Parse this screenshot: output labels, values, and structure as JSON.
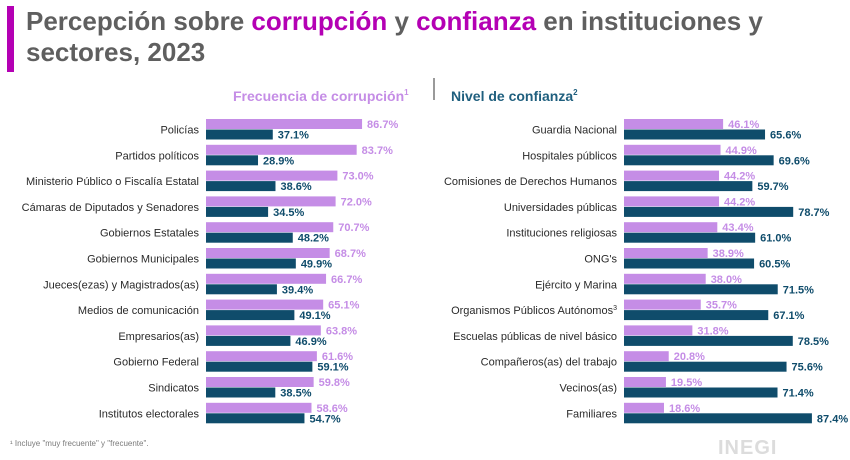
{
  "title": {
    "part1": "Percepción sobre ",
    "hl1": "corrupción",
    "part2": " y ",
    "hl2": "confianza",
    "part3": " en instituciones y sectores, 2023"
  },
  "legend": {
    "left_label": "Frecuencia de corrupción",
    "left_sup": "1",
    "right_label": "Nivel de confianza",
    "right_sup": "2"
  },
  "footnote": "¹ Incluye \"muy frecuente\" y \"frecuente\".",
  "logo": "INEGI",
  "colors": {
    "accent": "#b400b4",
    "light_bar": "#c58de6",
    "dark_bar": "#0f4c6b",
    "title": "#5f5f5f"
  },
  "chart_data": [
    {
      "type": "bar",
      "orientation": "horizontal",
      "title": "Frecuencia de corrupción",
      "categories": [
        "Policías",
        "Partidos políticos",
        "Ministerio Público o Fiscalía Estatal",
        "Cámaras de Diputados y Senadores",
        "Gobiernos Estatales",
        "Gobiernos Municipales",
        "Jueces(ezas) y Magistrados(as)",
        "Medios de comunicación",
        "Empresarios(as)",
        "Gobierno Federal",
        "Sindicatos",
        "Institutos electorales"
      ],
      "series": [
        {
          "values": [
            86.7,
            83.7,
            73.0,
            72.0,
            70.7,
            68.7,
            66.7,
            65.1,
            63.8,
            61.6,
            59.8,
            58.6
          ],
          "color": "#c58de6"
        },
        {
          "values": [
            37.1,
            28.9,
            38.6,
            34.5,
            48.2,
            49.9,
            39.4,
            49.1,
            46.9,
            59.1,
            38.5,
            54.7
          ],
          "color": "#0f4c6b"
        }
      ],
      "value_format": "%",
      "xlim": [
        0,
        100
      ]
    },
    {
      "type": "bar",
      "orientation": "horizontal",
      "title": "Nivel de confianza",
      "categories": [
        "Guardia Nacional",
        "Hospitales públicos",
        "Comisiones de Derechos Humanos",
        "Universidades públicas",
        "Instituciones religiosas",
        "ONG's",
        "Ejército y Marina",
        "Organismos Públicos Autónomos",
        "Escuelas públicas de nivel básico",
        "Compañeros(as) del trabajo",
        "Vecinos(as)",
        "Familiares"
      ],
      "category_sups": [
        "",
        "",
        "",
        "",
        "",
        "",
        "",
        "3",
        "",
        "",
        "",
        ""
      ],
      "series": [
        {
          "values": [
            46.1,
            44.9,
            44.2,
            44.2,
            43.4,
            38.9,
            38.0,
            35.7,
            31.8,
            20.8,
            19.5,
            18.6
          ],
          "color": "#c58de6"
        },
        {
          "values": [
            65.6,
            69.6,
            59.7,
            78.7,
            61.0,
            60.5,
            71.5,
            67.1,
            78.5,
            75.6,
            71.4,
            87.4
          ],
          "color": "#0f4c6b"
        }
      ],
      "value_format": "%",
      "xlim": [
        0,
        100
      ]
    }
  ]
}
